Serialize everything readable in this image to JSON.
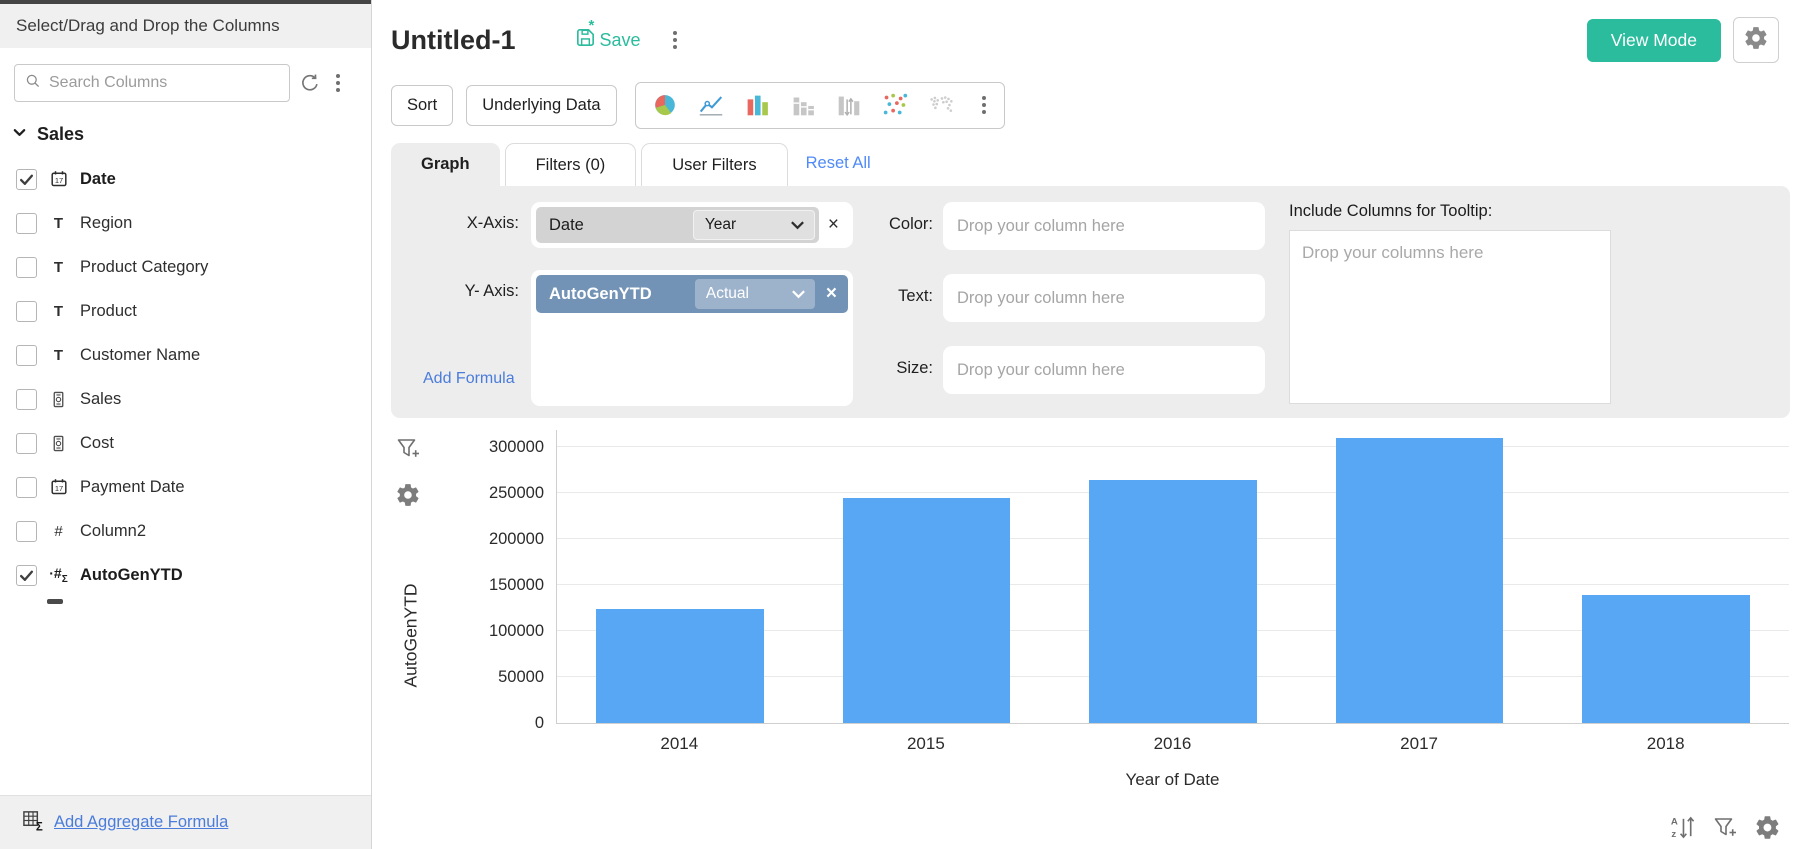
{
  "sidebar": {
    "header_title": "Select/Drag and Drop the Columns",
    "search_placeholder": "Search Columns",
    "section_label": "Sales",
    "columns": [
      {
        "label": "Date",
        "type": "date",
        "checked": true,
        "bold": true
      },
      {
        "label": "Region",
        "type": "text",
        "checked": false,
        "bold": false
      },
      {
        "label": "Product Category",
        "type": "text",
        "checked": false,
        "bold": false
      },
      {
        "label": "Product",
        "type": "text",
        "checked": false,
        "bold": false
      },
      {
        "label": "Customer Name",
        "type": "text",
        "checked": false,
        "bold": false
      },
      {
        "label": "Sales",
        "type": "currency",
        "checked": false,
        "bold": false
      },
      {
        "label": "Cost",
        "type": "currency",
        "checked": false,
        "bold": false
      },
      {
        "label": "Payment Date",
        "type": "date",
        "checked": false,
        "bold": false
      },
      {
        "label": "Column2",
        "type": "number",
        "checked": false,
        "bold": false
      },
      {
        "label": "AutoGenYTD",
        "type": "formula",
        "checked": true,
        "bold": true
      }
    ],
    "footer_link_label": "Add Aggregate Formula"
  },
  "header": {
    "title": "Untitled-1",
    "save_label": "Save",
    "view_mode_label": "View Mode"
  },
  "toolbar": {
    "sort_label": "Sort",
    "underlying_data_label": "Underlying Data",
    "chart_type_icons": [
      "pie-chart",
      "line-chart",
      "bar-chart",
      "stacked-bar-chart",
      "grouped-bar-chart",
      "scatter-plot",
      "map-chart"
    ]
  },
  "tabs": {
    "graph_label": "Graph",
    "filters_label": "Filters (0)",
    "user_filters_label": "User Filters",
    "reset_all_label": "Reset All"
  },
  "axis_panel": {
    "x_axis": {
      "label": "X-Axis:",
      "column": "Date",
      "aggregation": "Year"
    },
    "y_axis": {
      "label": "Y- Axis:",
      "column": "AutoGenYTD",
      "aggregation": "Actual"
    },
    "add_formula_label": "Add Formula",
    "color_label": "Color:",
    "text_label": "Text:",
    "size_label": "Size:",
    "drop_column_placeholder": "Drop your column here",
    "tooltip_label": "Include Columns for Tooltip:",
    "tooltip_placeholder": "Drop your columns here"
  },
  "chart_data": {
    "type": "bar",
    "categories": [
      "2014",
      "2015",
      "2016",
      "2017",
      "2018"
    ],
    "values": [
      124000,
      245000,
      264000,
      310000,
      139000
    ],
    "series_name": "AutoGenYTD",
    "xlabel": "Year of Date",
    "ylabel": "AutoGenYTD",
    "yticks": [
      0,
      50000,
      100000,
      150000,
      200000,
      250000,
      300000
    ],
    "ylim": [
      0,
      320000
    ],
    "grid": true,
    "legend": "none",
    "bar_color": "#57a7f5"
  },
  "colors": {
    "accent_teal": "#2abc9d",
    "bar_blue": "#57a7f5",
    "link_blue": "#4a7cdb",
    "reset_link_blue": "#4f8af8",
    "y_pill_blue": "#7293b5",
    "panel_gray": "#ededed"
  }
}
